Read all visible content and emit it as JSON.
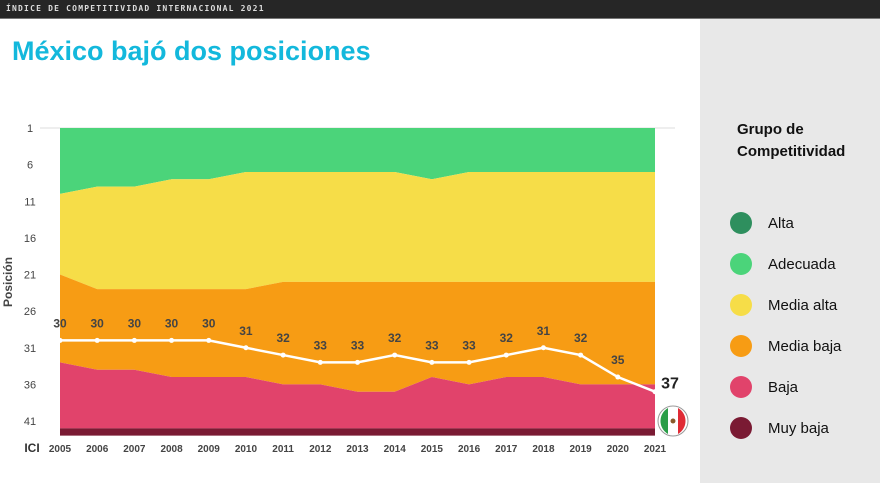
{
  "header": {
    "label": "ÍNDICE DE COMPETITIVIDAD INTERNACIONAL 2021"
  },
  "title": "México bajó dos posiciones",
  "legend": {
    "title": "Grupo de Competitividad",
    "items": [
      {
        "label": "Alta",
        "color": "#2e8f5e"
      },
      {
        "label": "Adecuada",
        "color": "#4bd47a"
      },
      {
        "label": "Media alta",
        "color": "#f6dd48"
      },
      {
        "label": "Media baja",
        "color": "#f79c14"
      },
      {
        "label": "Baja",
        "color": "#e1436b"
      },
      {
        "label": "Muy baja",
        "color": "#7a1a33"
      }
    ]
  },
  "chart_data": {
    "type": "area",
    "ylabel": "Posición",
    "xlabel": "ICI",
    "y_reversed": true,
    "ylim": [
      1,
      43
    ],
    "yticks": [
      1,
      6,
      11,
      16,
      21,
      26,
      31,
      36,
      41
    ],
    "x": [
      2005,
      2006,
      2007,
      2008,
      2009,
      2010,
      2011,
      2012,
      2013,
      2014,
      2015,
      2016,
      2017,
      2018,
      2019,
      2020,
      2021
    ],
    "group_boundaries": {
      "adecuada_media_alta": [
        10,
        9,
        9,
        8,
        8,
        7,
        7,
        7,
        7,
        7,
        8,
        7,
        7,
        7,
        7,
        7,
        7
      ],
      "media_alta_media_baja": [
        21,
        23,
        23,
        23,
        23,
        23,
        22,
        22,
        22,
        22,
        22,
        22,
        22,
        22,
        22,
        22,
        22
      ],
      "media_baja_baja": [
        33,
        34,
        34,
        35,
        35,
        35,
        36,
        36,
        37,
        37,
        35,
        36,
        35,
        35,
        36,
        36,
        36
      ],
      "baja_muy_baja": [
        42,
        42,
        42,
        42,
        42,
        42,
        42,
        42,
        42,
        42,
        42,
        42,
        42,
        42,
        42,
        42,
        42
      ]
    },
    "series": [
      {
        "name": "México",
        "values": [
          30,
          30,
          30,
          30,
          30,
          31,
          32,
          33,
          33,
          32,
          33,
          33,
          32,
          31,
          32,
          35,
          37
        ],
        "color": "#ffffff"
      }
    ]
  }
}
